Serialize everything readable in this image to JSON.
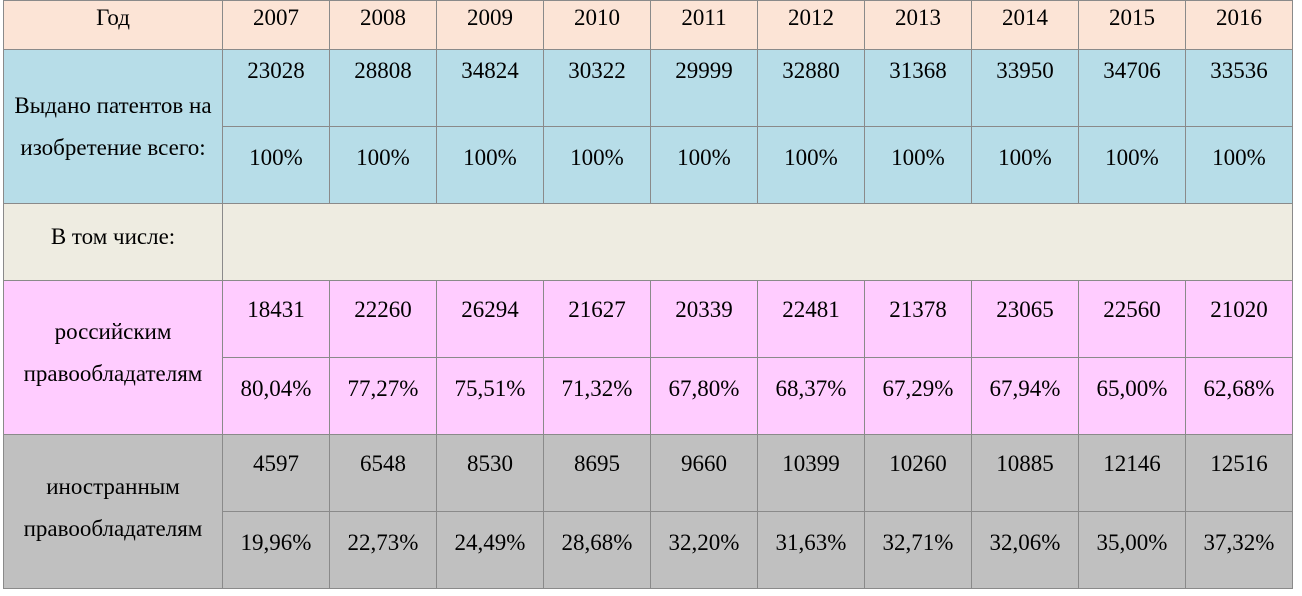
{
  "header": {
    "label": "Год",
    "years": [
      "2007",
      "2008",
      "2009",
      "2010",
      "2011",
      "2012",
      "2013",
      "2014",
      "2015",
      "2016"
    ]
  },
  "issued": {
    "label": "Выдано патентов на изобретение всего:",
    "counts": [
      "23028",
      "28808",
      "34824",
      "30322",
      "29999",
      "32880",
      "31368",
      "33950",
      "34706",
      "33536"
    ],
    "shares": [
      "100%",
      "100%",
      "100%",
      "100%",
      "100%",
      "100%",
      "100%",
      "100%",
      "100%",
      "100%"
    ]
  },
  "including": {
    "label": "В том числе:"
  },
  "russian": {
    "label": "российским правообладателям",
    "counts": [
      "18431",
      "22260",
      "26294",
      "21627",
      "20339",
      "22481",
      "21378",
      "23065",
      "22560",
      "21020"
    ],
    "shares": [
      "80,04%",
      "77,27%",
      "75,51%",
      "71,32%",
      "67,80%",
      "68,37%",
      "67,29%",
      "67,94%",
      "65,00%",
      "62,68%"
    ]
  },
  "foreign": {
    "label": "иностранным правообладателям",
    "counts": [
      "4597",
      "6548",
      "8530",
      "8695",
      "9660",
      "10399",
      "10260",
      "10885",
      "12146",
      "12516"
    ],
    "shares": [
      "19,96%",
      "22,73%",
      "24,49%",
      "28,68%",
      "32,20%",
      "31,63%",
      "32,71%",
      "32,06%",
      "35,00%",
      "37,32%"
    ]
  }
}
